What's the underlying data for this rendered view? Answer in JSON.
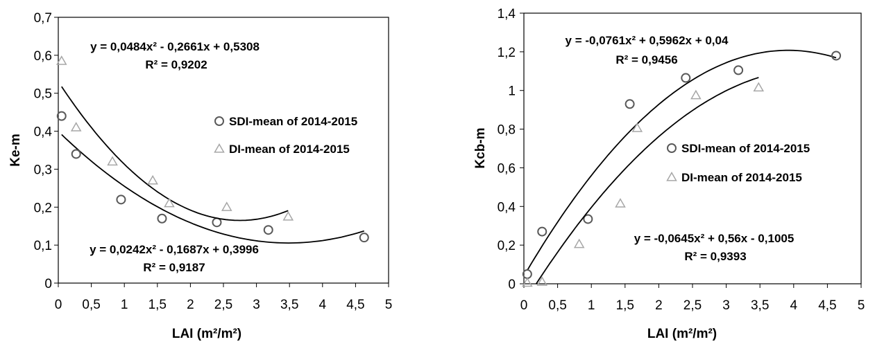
{
  "chart_data": [
    {
      "type": "scatter",
      "xlabel": "LAI (m²/m²)",
      "ylabel": "Ke-m",
      "xlim": [
        0,
        5
      ],
      "ylim": [
        0,
        0.7
      ],
      "xticks": [
        "0",
        "0,5",
        "1",
        "1,5",
        "2",
        "2,5",
        "3",
        "3,5",
        "4",
        "4,5",
        "5"
      ],
      "yticks": [
        "0",
        "0,1",
        "0,2",
        "0,3",
        "0,4",
        "0,5",
        "0,6",
        "0,7"
      ],
      "legend_position": "right-middle",
      "series": [
        {
          "name": "SDI-mean of 2014-2015",
          "marker": "circle",
          "color": "#595959",
          "x": [
            0.05,
            0.27,
            0.95,
            1.57,
            2.4,
            3.18,
            4.63
          ],
          "y": [
            0.44,
            0.34,
            0.22,
            0.17,
            0.16,
            0.14,
            0.12
          ],
          "trend": {
            "a": 0.0242,
            "b": -0.1687,
            "c": 0.3996,
            "x_range": [
              0.05,
              4.63
            ]
          },
          "equation": "y = 0,0242x² - 0,1687x + 0,3996",
          "r2": "R² = 0,9187"
        },
        {
          "name": "DI-mean of 2014-2015",
          "marker": "triangle",
          "color": "#a6a6a6",
          "x": [
            0.05,
            0.27,
            0.82,
            1.43,
            1.68,
            2.55,
            3.48
          ],
          "y": [
            0.585,
            0.41,
            0.32,
            0.27,
            0.21,
            0.2,
            0.175
          ],
          "trend": {
            "a": 0.0484,
            "b": -0.2661,
            "c": 0.5308,
            "x_range": [
              0.05,
              3.48
            ]
          },
          "equation": "y = 0,0484x² - 0,2661x + 0,5308",
          "r2": "R² = 0,9202"
        }
      ]
    },
    {
      "type": "scatter",
      "xlabel": "LAI (m²/m²)",
      "ylabel": "Kcb-m",
      "xlim": [
        0,
        5
      ],
      "ylim": [
        0,
        1.4
      ],
      "xticks": [
        "0",
        "0,5",
        "1",
        "1,5",
        "2",
        "2,5",
        "3",
        "3,5",
        "4",
        "4,5",
        "5"
      ],
      "yticks": [
        "0",
        "0,2",
        "0,4",
        "0,6",
        "0,8",
        "1",
        "1,2",
        "1,4"
      ],
      "legend_position": "right-middle",
      "series": [
        {
          "name": "SDI-mean of 2014-2015",
          "marker": "circle",
          "color": "#595959",
          "x": [
            0.05,
            0.27,
            0.95,
            1.57,
            2.4,
            3.18,
            4.63
          ],
          "y": [
            0.05,
            0.27,
            0.335,
            0.93,
            1.065,
            1.105,
            1.18
          ],
          "trend": {
            "a": -0.0761,
            "b": 0.5962,
            "c": 0.04,
            "x_range": [
              0.05,
              4.63
            ]
          },
          "equation": "y = -0,0761x² + 0,5962x + 0,04",
          "r2": "R² = 0,9456"
        },
        {
          "name": "DI-mean of 2014-2015",
          "marker": "triangle",
          "color": "#a6a6a6",
          "x": [
            0.05,
            0.27,
            0.82,
            1.43,
            1.68,
            2.55,
            3.48
          ],
          "y": [
            0.005,
            0.01,
            0.205,
            0.415,
            0.805,
            0.975,
            1.015
          ],
          "trend": {
            "a": -0.0645,
            "b": 0.56,
            "c": -0.1005,
            "x_range": [
              0.18,
              3.48
            ]
          },
          "equation": "y = -0,0645x² + 0,56x - 0,1005",
          "r2": "R² = 0,9393"
        }
      ]
    }
  ]
}
